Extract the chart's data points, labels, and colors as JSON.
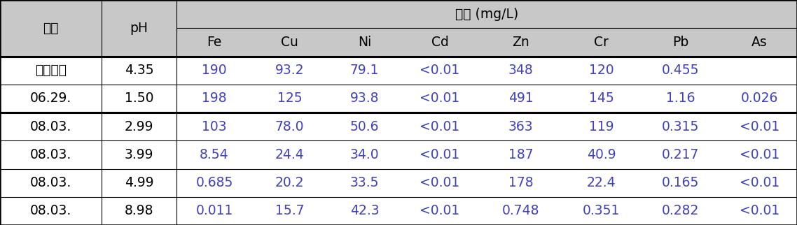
{
  "col_labels": [
    "폐수",
    "pH",
    "Fe",
    "Cu",
    "Ni",
    "Cd",
    "Zn",
    "Cr",
    "Pb",
    "As"
  ],
  "group_label": "함량 (mg/L)",
  "rows": [
    [
      "현장측정",
      "4.35",
      "190",
      "93.2",
      "79.1",
      "<0.01",
      "348",
      "120",
      "0.455",
      ""
    ],
    [
      "06.29.",
      "1.50",
      "198",
      "125",
      "93.8",
      "<0.01",
      "491",
      "145",
      "1.16",
      "0.026"
    ],
    [
      "08.03.",
      "2.99",
      "103",
      "78.0",
      "50.6",
      "<0.01",
      "363",
      "119",
      "0.315",
      "<0.01"
    ],
    [
      "08.03.",
      "3.99",
      "8.54",
      "24.4",
      "34.0",
      "<0.01",
      "187",
      "40.9",
      "0.217",
      "<0.01"
    ],
    [
      "08.03.",
      "4.99",
      "0.685",
      "20.2",
      "33.5",
      "<0.01",
      "178",
      "22.4",
      "0.165",
      "<0.01"
    ],
    [
      "08.03.",
      "8.98",
      "0.011",
      "15.7",
      "42.3",
      "<0.01",
      "0.748",
      "0.351",
      "0.282",
      "<0.01"
    ]
  ],
  "header_bg": "#c8c8c8",
  "data_bg": "#ffffff",
  "text_color_header": "#000000",
  "text_color_data": "#4040c0",
  "text_color_label": "#000000",
  "col_widths_rel": [
    1.35,
    1.0,
    1.0,
    1.0,
    1.0,
    1.0,
    1.15,
    1.0,
    1.1,
    1.0
  ],
  "figsize": [
    11.38,
    3.22
  ],
  "dpi": 100,
  "base_fontsize": 13.5,
  "outer_lw": 1.8,
  "thick_lw": 2.2,
  "thin_lw": 0.8
}
